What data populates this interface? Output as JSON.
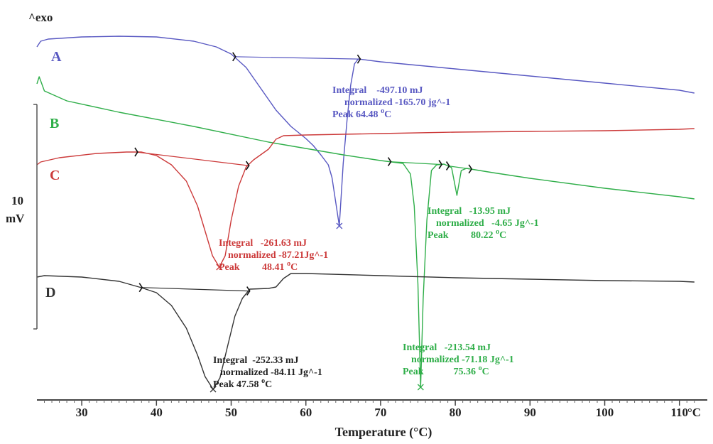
{
  "chart_data": {
    "type": "line",
    "title": "",
    "xlabel": "Temperature (°C)",
    "x_unit_label": "°C",
    "exo_label": "^exo",
    "scale_bar": {
      "value_label": "10",
      "unit_label": "mV"
    },
    "xlim": [
      24,
      112
    ],
    "xticks": [
      30,
      40,
      50,
      60,
      70,
      80,
      90,
      100,
      110
    ],
    "colors": {
      "A": "#5858c2",
      "B": "#2fae49",
      "C": "#cc3a3a",
      "D": "#333333"
    },
    "series": [
      {
        "name": "A",
        "color": "#5858c2",
        "points": [
          [
            24,
            66
          ],
          [
            24.5,
            58
          ],
          [
            25.5,
            55
          ],
          [
            30,
            52
          ],
          [
            35,
            51
          ],
          [
            40,
            52
          ],
          [
            45,
            58
          ],
          [
            48,
            66
          ],
          [
            50,
            76
          ],
          [
            52,
            95
          ],
          [
            54,
            125
          ],
          [
            56,
            155
          ],
          [
            58,
            178
          ],
          [
            60,
            195
          ],
          [
            61,
            205
          ],
          [
            62,
            218
          ],
          [
            63,
            232
          ],
          [
            63.5,
            250
          ],
          [
            64,
            285
          ],
          [
            64.48,
            318
          ],
          [
            65,
            230
          ],
          [
            65.5,
            170
          ],
          [
            66,
            120
          ],
          [
            66.5,
            90
          ],
          [
            67,
            83
          ],
          [
            70,
            87
          ],
          [
            80,
            97
          ],
          [
            90,
            107
          ],
          [
            100,
            117
          ],
          [
            110,
            127
          ],
          [
            112,
            131
          ]
        ],
        "markers_x": [
          50.4,
          67.1
        ],
        "peak_marker_x": 64.48,
        "annotation": {
          "integral": "Integral    -497.10 mJ",
          "normalized": "normalized -165.70 jg^-1",
          "peak": "Peak 64.48 ",
          "peak_unit": "C"
        }
      },
      {
        "name": "B",
        "color": "#2fae49",
        "points": [
          [
            24,
            118
          ],
          [
            24.3,
            108
          ],
          [
            25,
            128
          ],
          [
            28,
            142
          ],
          [
            35,
            158
          ],
          [
            45,
            178
          ],
          [
            55,
            200
          ],
          [
            65,
            218
          ],
          [
            70,
            226
          ],
          [
            73,
            230
          ],
          [
            74,
            245
          ],
          [
            74.5,
            290
          ],
          [
            75,
            400
          ],
          [
            75.36,
            545
          ],
          [
            75.7,
            420
          ],
          [
            76.2,
            310
          ],
          [
            76.8,
            240
          ],
          [
            77.5,
            232
          ],
          [
            78.5,
            231
          ],
          [
            79.5,
            236
          ],
          [
            80.22,
            275
          ],
          [
            80.8,
            240
          ],
          [
            81.5,
            237
          ],
          [
            85,
            243
          ],
          [
            90,
            251
          ],
          [
            100,
            265
          ],
          [
            110,
            277
          ],
          [
            112,
            280
          ]
        ],
        "markers_x": [
          71.2,
          78.0,
          79.0,
          82.0
        ],
        "peak_marker_x": 75.36,
        "annotations": [
          {
            "integral": "Integral   -213.54 mJ",
            "normalized": "normalized -71.18 Jg^-1",
            "peak": "Peak            75.36 ",
            "peak_unit": "C"
          },
          {
            "integral": "Integral   -13.95 mJ",
            "normalized": "normalized   -4.65 Jg^-1",
            "peak": "Peak         80.22 ",
            "peak_unit": "C"
          }
        ]
      },
      {
        "name": "C",
        "color": "#cc3a3a",
        "points": [
          [
            24,
            232
          ],
          [
            24.5,
            228
          ],
          [
            27,
            222
          ],
          [
            32,
            216
          ],
          [
            36,
            214
          ],
          [
            38,
            214
          ],
          [
            40,
            219
          ],
          [
            42,
            232
          ],
          [
            44,
            255
          ],
          [
            45.5,
            290
          ],
          [
            46.5,
            325
          ],
          [
            47.5,
            360
          ],
          [
            48.41,
            376
          ],
          [
            49.2,
            360
          ],
          [
            50,
            310
          ],
          [
            51,
            262
          ],
          [
            52,
            235
          ],
          [
            53,
            225
          ],
          [
            55,
            210
          ],
          [
            56,
            196
          ],
          [
            57,
            191
          ],
          [
            60,
            190
          ],
          [
            70,
            188
          ],
          [
            80,
            186
          ],
          [
            90,
            185
          ],
          [
            100,
            184
          ],
          [
            110,
            182
          ],
          [
            112,
            181
          ]
        ],
        "markers_x": [
          37.3,
          52.2
        ],
        "peak_marker_x": 48.41,
        "annotation": {
          "integral": "Integral   -261.63 mJ",
          "normalized": "normalized -87.21Jg^-1",
          "peak": "Peak         48.41 ",
          "peak_unit": "C"
        }
      },
      {
        "name": "D",
        "color": "#333333",
        "points": [
          [
            24,
            390
          ],
          [
            25,
            388
          ],
          [
            30,
            390
          ],
          [
            35,
            396
          ],
          [
            38,
            405
          ],
          [
            40,
            412
          ],
          [
            42,
            430
          ],
          [
            44,
            462
          ],
          [
            45.5,
            500
          ],
          [
            46.5,
            530
          ],
          [
            47.58,
            548
          ],
          [
            48.5,
            532
          ],
          [
            49.5,
            488
          ],
          [
            50.5,
            445
          ],
          [
            51.5,
            420
          ],
          [
            52.5,
            407
          ],
          [
            55,
            406
          ],
          [
            56,
            404
          ],
          [
            57,
            392
          ],
          [
            58,
            385
          ],
          [
            60,
            385
          ],
          [
            70,
            388
          ],
          [
            80,
            391
          ],
          [
            90,
            393
          ],
          [
            100,
            395
          ],
          [
            110,
            396
          ],
          [
            112,
            397
          ]
        ],
        "markers_x": [
          37.9,
          52.3
        ],
        "peak_marker_x": 47.58,
        "annotation": {
          "integral": "Integral  -252.33 mJ",
          "normalized": "normalized -84.11 Jg^-1",
          "peak": "Peak 47.58 ",
          "peak_unit": "C"
        }
      }
    ]
  }
}
